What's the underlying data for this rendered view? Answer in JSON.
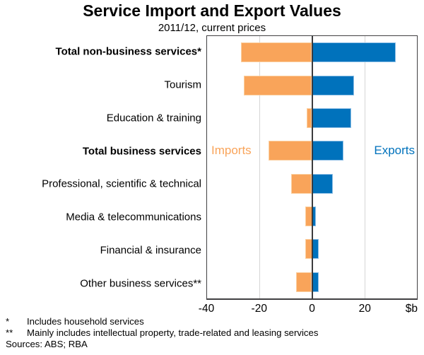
{
  "chart_data": {
    "type": "bar",
    "orientation": "horizontal",
    "title": "Service Import and Export Values",
    "subtitle": "2011/12, current prices",
    "unit_label": "$b",
    "xlim": [
      -40,
      40
    ],
    "x_ticks": [
      -40,
      -20,
      0,
      20
    ],
    "grid_ticks": [
      -20,
      20
    ],
    "legend_position": "inside-row-4",
    "grid": "vertical-light",
    "categories": [
      "Total non-business services*",
      "Tourism",
      "Education & training",
      "Total business services",
      "Professional, scientific & technical",
      "Media & telecommunications",
      "Financial & insurance",
      "Other business services**"
    ],
    "bold_categories": [
      true,
      false,
      false,
      true,
      false,
      false,
      false,
      false
    ],
    "series": [
      {
        "name": "Imports",
        "color": "#f9a45a",
        "values": [
          -27,
          -26,
          -2,
          -16.5,
          -8,
          -2.5,
          -2.5,
          -6
        ]
      },
      {
        "name": "Exports",
        "color": "#0072bc",
        "values": [
          32,
          16,
          15,
          12,
          8,
          1.5,
          2.5,
          2.5
        ]
      }
    ]
  },
  "footnotes": [
    {
      "marker": "*",
      "text": "Includes household services"
    },
    {
      "marker": "**",
      "text": "Mainly includes intellectual property, trade-related and leasing services"
    }
  ],
  "sources": "Sources: ABS; RBA",
  "colors": {
    "imports": "#f9a45a",
    "exports": "#0072bc",
    "axis_line": "#3b3b3d",
    "gridline": "#d5d5d5",
    "background": "#ffffff"
  }
}
